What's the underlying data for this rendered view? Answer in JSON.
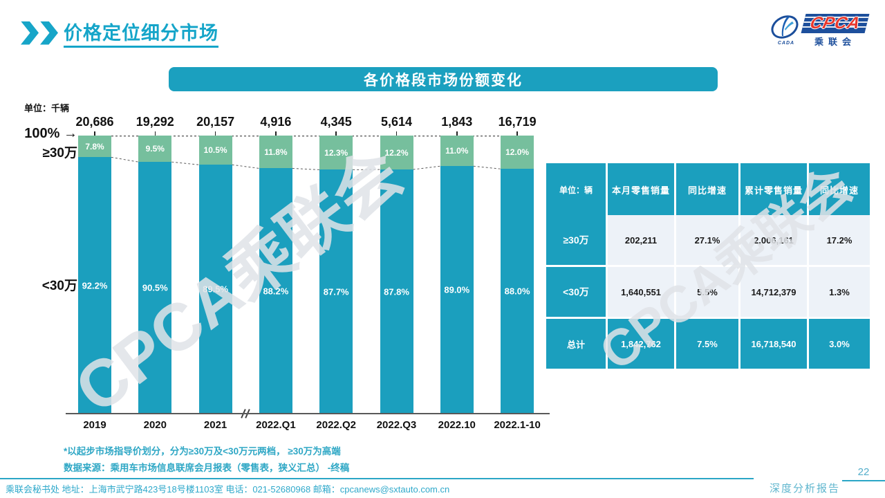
{
  "header": {
    "title": "价格定位细分市场"
  },
  "logo": {
    "cpca": "CPCA",
    "cn": "乘联会",
    "emblem": "CADA"
  },
  "banner": {
    "title": "各价格段市场份额变化"
  },
  "icons": {
    "arrow_right": "→"
  },
  "watermark": "CPCA乘联会",
  "colors": {
    "accent_teal": "#1b9fbe",
    "segment_green": "#76bf9d",
    "title_teal": "#15a5c9",
    "note_teal": "#2ea7c5",
    "table_light_cell": "#edf2f8"
  },
  "chart_data": {
    "type": "bar",
    "subtype": "100%-stacked-column",
    "unit_label": "单位：千辆",
    "categories": [
      "2019",
      "2020",
      "2021",
      "2022.Q1",
      "2022.Q2",
      "2022.Q3",
      "2022.10",
      "2022.1-10"
    ],
    "totals": [
      "20,686",
      "19,292",
      "20,157",
      "4,916",
      "4,345",
      "5,614",
      "1,843",
      "16,719"
    ],
    "series": [
      {
        "name": "≥30万",
        "color": "#76bf9d",
        "values": [
          7.8,
          9.5,
          10.5,
          11.8,
          12.3,
          12.2,
          11.0,
          12.0
        ]
      },
      {
        "name": "<30万",
        "color": "#1b9fbe",
        "values": [
          92.2,
          90.5,
          89.5,
          88.2,
          87.7,
          87.8,
          89.0,
          88.0
        ]
      }
    ],
    "axis_annotations": {
      "top": "100%",
      "top_series": "≥30万",
      "bottom_series": "<30万"
    },
    "axis_break_after_index": 2,
    "ylim": [
      0,
      100
    ],
    "grid": false,
    "legend": "none"
  },
  "table": {
    "headers": [
      "单位：辆",
      "本月零售销量",
      "同比增速",
      "累计零售销量",
      "同比增速"
    ],
    "rows": [
      {
        "label": "≥30万",
        "cells": [
          "202,211",
          "27.1%",
          "2,006,161",
          "17.2%"
        ],
        "is_total": false
      },
      {
        "label": "<30万",
        "cells": [
          "1,640,551",
          "5.5%",
          "14,712,379",
          "1.3%"
        ],
        "is_total": false
      },
      {
        "label": "总计",
        "cells": [
          "1,842,762",
          "7.5%",
          "16,718,540",
          "3.0%"
        ],
        "is_total": true
      }
    ]
  },
  "notes": {
    "line1": "*以起步市场指导价划分，分为≥30万及<30万元两档， ≥30万为高端",
    "line2": "数据来源：乘用车市场信息联席会月报表（零售表，狭义汇总） -终稿"
  },
  "footer": {
    "left": "乘联会秘书处  地址：上海市武宁路423号18号楼1103室 电话：021-52680968  邮箱：cpcanews@sxtauto.com.cn",
    "report": "深度分析报告",
    "page": "22"
  }
}
